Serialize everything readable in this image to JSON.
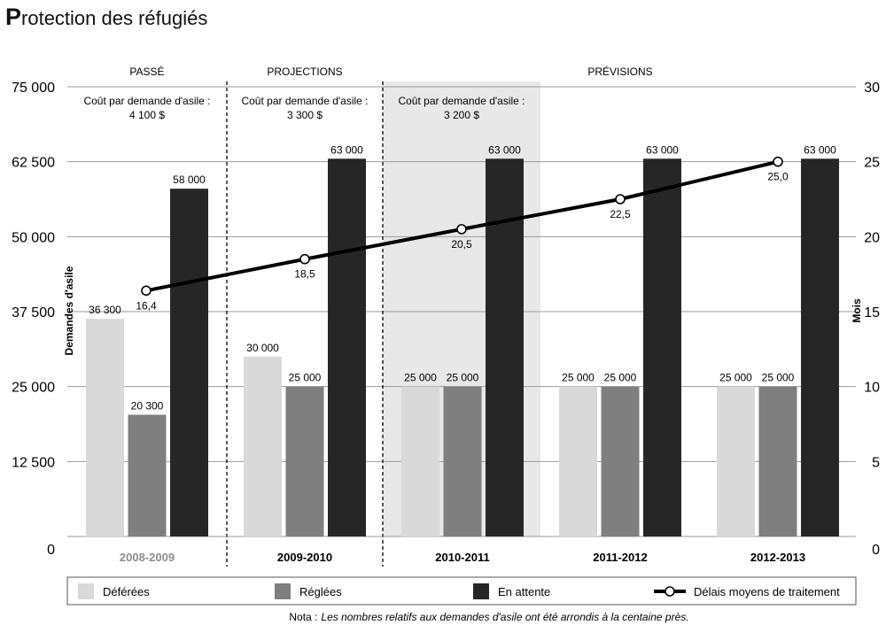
{
  "title": {
    "initial": "P",
    "rest": "rotection des réfugiés"
  },
  "chart_data": {
    "type": "bar",
    "categories": [
      "2008-2009",
      "2009-2010",
      "2010-2011",
      "2011-2012",
      "2012-2013"
    ],
    "series": [
      {
        "name": "Déférées",
        "color": "#d9d9d9",
        "values": [
          36300,
          30000,
          25000,
          25000,
          25000
        ],
        "labels": [
          "36 300",
          "30 000",
          "25 000",
          "25 000",
          "25 000"
        ]
      },
      {
        "name": "Réglées",
        "color": "#7f7f7f",
        "values": [
          20300,
          25000,
          25000,
          25000,
          25000
        ],
        "labels": [
          "20 300",
          "25 000",
          "25 000",
          "25 000",
          "25 000"
        ]
      },
      {
        "name": "En attente",
        "color": "#262626",
        "values": [
          58000,
          63000,
          63000,
          63000,
          63000
        ],
        "labels": [
          "58 000",
          "63 000",
          "63 000",
          "63 000",
          "63 000"
        ]
      }
    ],
    "line": {
      "name": "Délais moyens de traitement",
      "values": [
        16.4,
        18.5,
        20.5,
        22.5,
        25.0
      ],
      "labels": [
        "16,4",
        "18,5",
        "20,5",
        "22,5",
        "25,0"
      ]
    },
    "y_left": {
      "label": "Demandes d'asile",
      "min": 0,
      "max": 75000,
      "ticks": [
        0,
        12500,
        25000,
        37500,
        50000,
        62500,
        75000
      ],
      "tick_labels": [
        "0",
        "12 500",
        "25 000",
        "37 500",
        "50 000",
        "62 500",
        "75 000"
      ]
    },
    "y_right": {
      "label": "Mois",
      "min": 0,
      "max": 30,
      "ticks": [
        0,
        5,
        10,
        15,
        20,
        25,
        30
      ],
      "tick_labels": [
        "0",
        "5",
        "10",
        "15",
        "20",
        "25",
        "30"
      ]
    },
    "periods": [
      {
        "label": "PASSÉ",
        "cost_label": "Coût par demande d'asile :",
        "cost_value": "4 100 $"
      },
      {
        "label": "PROJECTIONS",
        "cost_label": "Coût par demande d'asile :",
        "cost_value": "3 300 $"
      },
      {
        "label": "PRÉVISIONS",
        "cost_label": "Coût par demande d'asile :",
        "cost_value": "3 200 $"
      }
    ],
    "note_prefix": "Nota :",
    "note_text": "Les nombres relatifs aux demandes d'asile ont été arrondis à la centaine près.",
    "colors": {
      "grid": "#9a9a9a",
      "highlight": "#e8e8e8",
      "first_category": "#8c8c8c",
      "line": "#000000"
    }
  }
}
